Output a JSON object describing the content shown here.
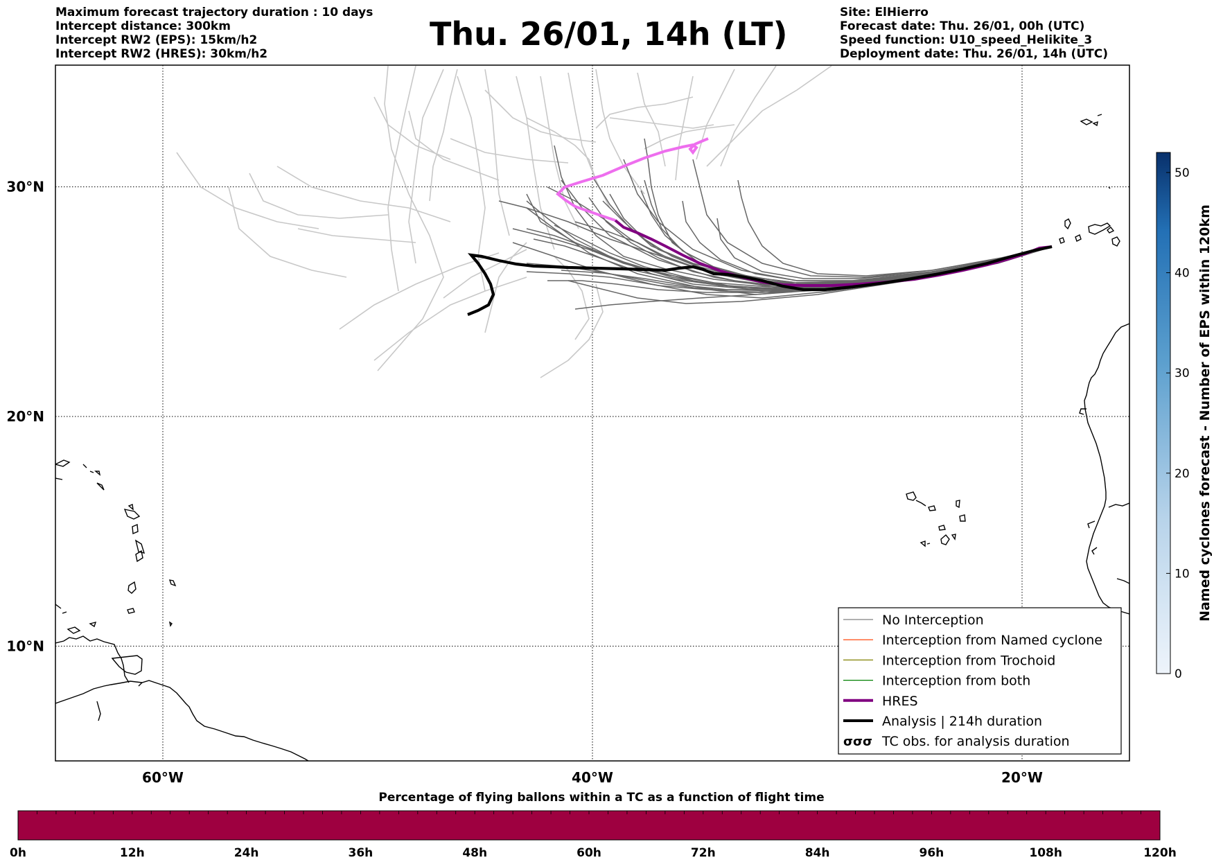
{
  "header_left": [
    "Maximum forecast trajectory duration : 10 days",
    "Intercept distance: 300km",
    "Intercept RW2 (EPS):  15km/h2",
    "Intercept RW2 (HRES): 30km/h2"
  ],
  "title": "Thu. 26/01, 14h (LT)",
  "header_right": [
    "Site: ElHierro",
    "Forecast date: Thu. 26/01, 00h (UTC)",
    "Speed function: U10_speed_Helikite_3",
    "Deployment date: Thu. 26/01, 14h (UTC)"
  ],
  "map": {
    "lat_labels": [
      "30°N",
      "20°N",
      "10°N"
    ],
    "lon_labels": [
      "60°W",
      "40°W",
      "20°W"
    ],
    "lat_values": [
      30,
      20,
      10
    ],
    "lon_values": [
      -60,
      -40,
      -20
    ],
    "extent": {
      "lon_min": -65,
      "lon_max": -15,
      "lat_min": 5,
      "lat_max": 35.3
    },
    "hres_color": "#800080",
    "hres_early_color": "#ee6eee",
    "analysis_color": "#000000",
    "eps_colors": [
      "#666666",
      "#c8c8c8"
    ]
  },
  "legend": {
    "items": [
      {
        "label": "No Interception",
        "color": "#808080"
      },
      {
        "label": "Interception from Named cyclone",
        "color": "#ff5722"
      },
      {
        "label": "Interception from Trochoid",
        "color": "#808000"
      },
      {
        "label": "Interception from both",
        "color": "#008000"
      },
      {
        "label": "HRES",
        "color": "#800080"
      },
      {
        "label": "Analysis | 214h duration",
        "color": "#000000"
      },
      {
        "label": "TC obs. for analysis duration",
        "color": "#000000"
      }
    ]
  },
  "colorbar_right": {
    "label": "Named cyclones forecast - Number of EPS within 120km",
    "ticks": [
      "0",
      "10",
      "20",
      "30",
      "40",
      "50"
    ],
    "min": 0,
    "max": 52,
    "color_low": "#e3ecf7",
    "color_high": "#08306b"
  },
  "bottom_bar": {
    "title": "Percentage of flying ballons within a TC as a function of flight time",
    "ticks": [
      "0h",
      "12h",
      "24h",
      "36h",
      "48h",
      "60h",
      "72h",
      "84h",
      "96h",
      "108h",
      "120h"
    ],
    "color": "#9e0040"
  }
}
